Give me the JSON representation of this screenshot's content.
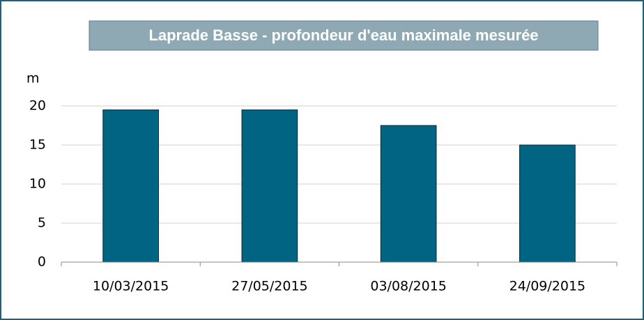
{
  "chart_data": {
    "type": "bar",
    "title": "Laprade Basse - profondeur d'eau maximale mesurée",
    "y_label": "m",
    "categories": [
      "10/03/2015",
      "27/05/2015",
      "03/08/2015",
      "24/09/2015"
    ],
    "values": [
      19.5,
      19.5,
      17.5,
      15
    ],
    "color": "#006482",
    "ylim": [
      0,
      20
    ],
    "yticks": [
      0,
      5,
      10,
      15,
      20
    ],
    "grid": true
  }
}
